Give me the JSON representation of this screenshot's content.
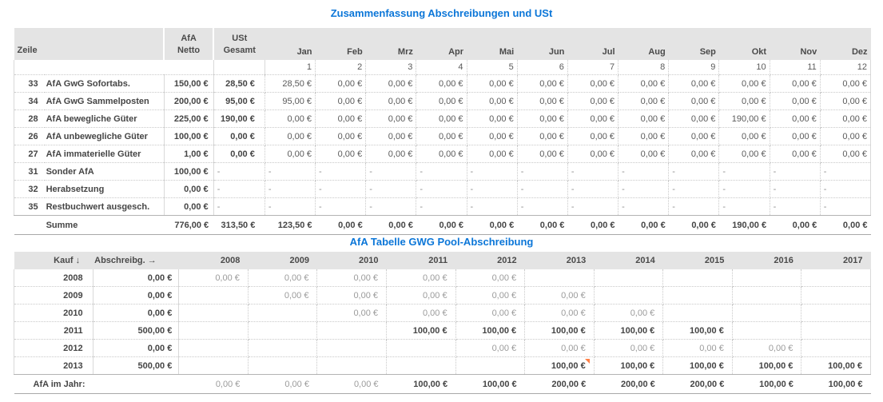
{
  "table1": {
    "title": "Zusammenfassung Abschreibungen und USt",
    "header": {
      "zeile": "Zeile",
      "afa_top": "AfA",
      "afa_bottom": "Netto",
      "ust_top": "USt",
      "ust_bottom": "Gesamt",
      "months": [
        "Jan",
        "Feb",
        "Mrz",
        "Apr",
        "Mai",
        "Jun",
        "Jul",
        "Aug",
        "Sep",
        "Okt",
        "Nov",
        "Dez"
      ],
      "month_numbers": [
        "1",
        "2",
        "3",
        "4",
        "5",
        "6",
        "7",
        "8",
        "9",
        "10",
        "11",
        "12"
      ]
    },
    "rows": [
      {
        "num": "33",
        "label": "AfA GwG Sofortabs.",
        "netto": "150,00 €",
        "ust": "28,50 €",
        "dash": false,
        "months": [
          "28,50 €",
          "0,00 €",
          "0,00 €",
          "0,00 €",
          "0,00 €",
          "0,00 €",
          "0,00 €",
          "0,00 €",
          "0,00 €",
          "0,00 €",
          "0,00 €",
          "0,00 €"
        ]
      },
      {
        "num": "34",
        "label": "AfA GwG Sammelposten",
        "netto": "200,00 €",
        "ust": "95,00 €",
        "dash": false,
        "months": [
          "95,00 €",
          "0,00 €",
          "0,00 €",
          "0,00 €",
          "0,00 €",
          "0,00 €",
          "0,00 €",
          "0,00 €",
          "0,00 €",
          "0,00 €",
          "0,00 €",
          "0,00 €"
        ]
      },
      {
        "num": "28",
        "label": "AfA bewegliche Güter",
        "netto": "225,00 €",
        "ust": "190,00 €",
        "dash": false,
        "months": [
          "0,00 €",
          "0,00 €",
          "0,00 €",
          "0,00 €",
          "0,00 €",
          "0,00 €",
          "0,00 €",
          "0,00 €",
          "0,00 €",
          "190,00 €",
          "0,00 €",
          "0,00 €"
        ]
      },
      {
        "num": "26",
        "label": "AfA unbewegliche Güter",
        "netto": "100,00 €",
        "ust": "0,00 €",
        "dash": false,
        "months": [
          "0,00 €",
          "0,00 €",
          "0,00 €",
          "0,00 €",
          "0,00 €",
          "0,00 €",
          "0,00 €",
          "0,00 €",
          "0,00 €",
          "0,00 €",
          "0,00 €",
          "0,00 €"
        ]
      },
      {
        "num": "27",
        "label": "AfA immaterielle Güter",
        "netto": "1,00 €",
        "ust": "0,00 €",
        "dash": false,
        "months": [
          "0,00 €",
          "0,00 €",
          "0,00 €",
          "0,00 €",
          "0,00 €",
          "0,00 €",
          "0,00 €",
          "0,00 €",
          "0,00 €",
          "0,00 €",
          "0,00 €",
          "0,00 €"
        ]
      },
      {
        "num": "31",
        "label": "Sonder AfA",
        "netto": "100,00 €",
        "ust": "-",
        "dash": true,
        "months": [
          "-",
          "-",
          "-",
          "-",
          "-",
          "-",
          "-",
          "-",
          "-",
          "-",
          "-",
          "-"
        ]
      },
      {
        "num": "32",
        "label": "Herabsetzung",
        "netto": "0,00 €",
        "ust": "-",
        "dash": true,
        "months": [
          "-",
          "-",
          "-",
          "-",
          "-",
          "-",
          "-",
          "-",
          "-",
          "-",
          "-",
          "-"
        ]
      },
      {
        "num": "35",
        "label": "Restbuchwert ausgesch.",
        "netto": "0,00 €",
        "ust": "-",
        "dash": true,
        "months": [
          "-",
          "-",
          "-",
          "-",
          "-",
          "-",
          "-",
          "-",
          "-",
          "-",
          "-",
          "-"
        ]
      }
    ],
    "summe": {
      "label": "Summe",
      "netto": "776,00 €",
      "ust": "313,50 €",
      "months": [
        "123,50 €",
        "0,00 €",
        "0,00 €",
        "0,00 €",
        "0,00 €",
        "0,00 €",
        "0,00 €",
        "0,00 €",
        "0,00 €",
        "190,00 €",
        "0,00 €",
        "0,00 €"
      ]
    }
  },
  "table2": {
    "title": "AfA Tabelle GWG Pool-Abschreibung",
    "header": {
      "kauf": "Kauf ↓",
      "abschreibg": "Abschreibg. →",
      "years": [
        "2008",
        "2009",
        "2010",
        "2011",
        "2012",
        "2013",
        "2014",
        "2015",
        "2016",
        "2017"
      ]
    },
    "rows": [
      {
        "year": "2008",
        "abschreibg": "0,00 €",
        "values": [
          "0,00 €",
          "0,00 €",
          "0,00 €",
          "0,00 €",
          "0,00 €",
          "",
          "",
          "",
          "",
          ""
        ]
      },
      {
        "year": "2009",
        "abschreibg": "0,00 €",
        "values": [
          "",
          "0,00 €",
          "0,00 €",
          "0,00 €",
          "0,00 €",
          "0,00 €",
          "",
          "",
          "",
          ""
        ]
      },
      {
        "year": "2010",
        "abschreibg": "0,00 €",
        "values": [
          "",
          "",
          "0,00 €",
          "0,00 €",
          "0,00 €",
          "0,00 €",
          "0,00 €",
          "",
          "",
          ""
        ]
      },
      {
        "year": "2011",
        "abschreibg": "500,00 €",
        "values": [
          "",
          "",
          "",
          "100,00 €",
          "100,00 €",
          "100,00 €",
          "100,00 €",
          "100,00 €",
          "",
          ""
        ]
      },
      {
        "year": "2012",
        "abschreibg": "0,00 €",
        "values": [
          "",
          "",
          "",
          "",
          "0,00 €",
          "0,00 €",
          "0,00 €",
          "0,00 €",
          "0,00 €",
          ""
        ]
      },
      {
        "year": "2013",
        "abschreibg": "500,00 €",
        "comment_col": 5,
        "values": [
          "",
          "",
          "",
          "",
          "",
          "100,00 €",
          "100,00 €",
          "100,00 €",
          "100,00 €",
          "100,00 €"
        ]
      }
    ],
    "footer": {
      "label": "AfA im Jahr:",
      "values": [
        "0,00 €",
        "0,00 €",
        "0,00 €",
        "100,00 €",
        "100,00 €",
        "200,00 €",
        "200,00 €",
        "200,00 €",
        "100,00 €",
        "100,00 €"
      ]
    }
  },
  "colors": {
    "title_blue": "#0b76d8",
    "header_grey": "#e4e4e4",
    "text_dark": "#454545",
    "text_medium": "#5a5a5a",
    "text_light": "#9b9b9b",
    "comment_orange": "#ff7f45"
  }
}
